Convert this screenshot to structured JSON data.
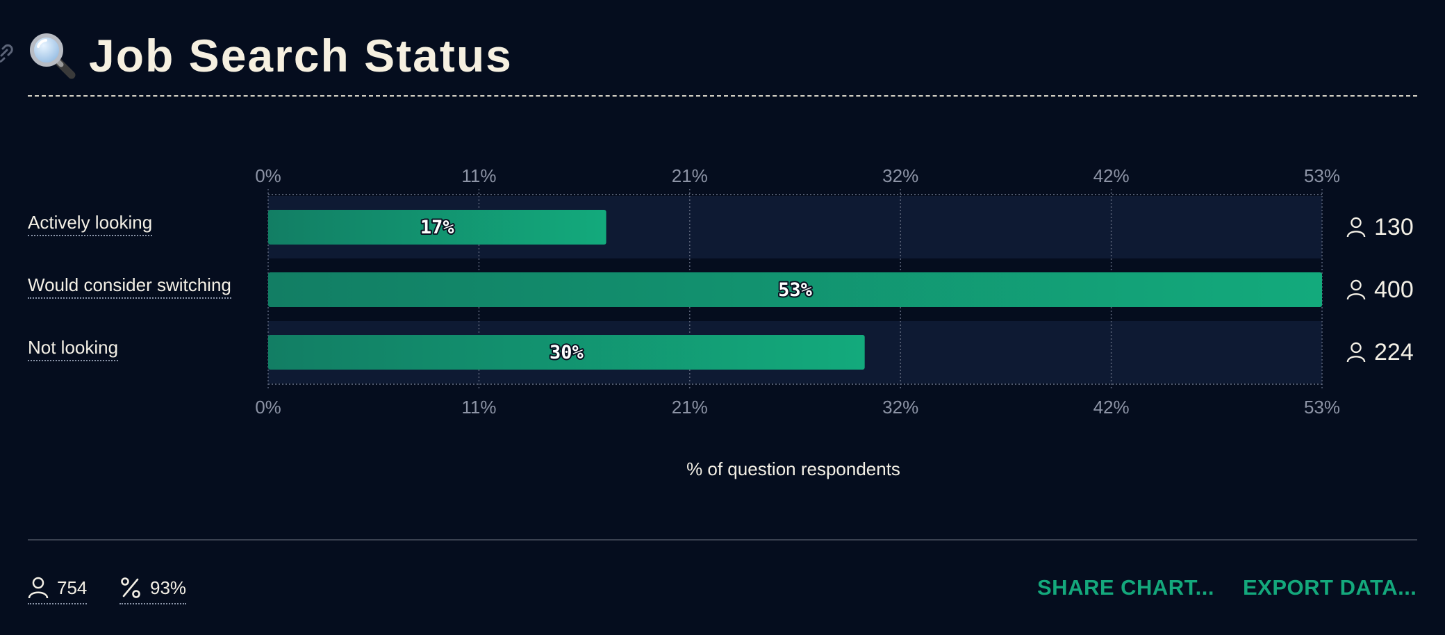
{
  "title": "Job Search Status",
  "title_icon": "magnifying-glass-icon",
  "anchor_icon": "link-icon",
  "colors": {
    "background": "#050d1e",
    "track": "#0e1a33",
    "bar_start": "#127e64",
    "bar_end": "#13aa7c",
    "accent": "#14a87c"
  },
  "chart_data": {
    "type": "bar",
    "orientation": "horizontal",
    "categories": [
      "Actively looking",
      "Would consider switching",
      "Not looking"
    ],
    "values": [
      17,
      53,
      30
    ],
    "counts": [
      130,
      400,
      224
    ],
    "data_labels": [
      "17%",
      "53%",
      "30%"
    ],
    "xlabel": "% of question respondents",
    "ylabel": "",
    "xlim": [
      0,
      53
    ],
    "x_ticks": [
      0,
      10.6,
      21.2,
      31.8,
      42.4,
      53
    ],
    "x_tick_labels": [
      "0%",
      "11%",
      "21%",
      "32%",
      "42%",
      "53%"
    ],
    "grid": true,
    "tick_labels_top_and_bottom": true
  },
  "footer": {
    "respondents": "754",
    "respondents_icon": "user-icon",
    "completion": "93%",
    "completion_icon": "percent-icon",
    "share_label": "SHARE CHART...",
    "export_label": "EXPORT DATA..."
  }
}
